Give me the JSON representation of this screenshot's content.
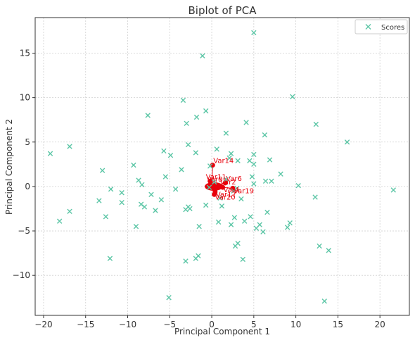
{
  "chart_data": {
    "type": "scatter",
    "title": "Biplot of PCA",
    "xlabel": "Principal Component 1",
    "ylabel": "Principal Component 2",
    "xlim": [
      -21,
      23.5
    ],
    "ylim": [
      -14.5,
      19
    ],
    "xticks": [
      -20,
      -15,
      -10,
      -5,
      0,
      5,
      10,
      15,
      20
    ],
    "yticks": [
      -10,
      -5,
      0,
      5,
      10,
      15
    ],
    "grid": true,
    "legend": {
      "position": "top-right",
      "entries": [
        "Scores"
      ]
    },
    "colors": {
      "scores": "#5cc6a6",
      "vectors": "#e8000b",
      "axes": "#333333",
      "grid": "#d0d0d0"
    },
    "series": [
      {
        "name": "Scores",
        "marker": "x",
        "x": [
          5.0,
          -1.1,
          9.6,
          -3.4,
          -0.7,
          -7.6,
          -1.8,
          4.1,
          12.4,
          -3.0,
          1.7,
          6.3,
          16.1,
          -19.2,
          -16.9,
          -2.8,
          -5.7,
          0.6,
          -4.9,
          -1.9,
          5.0,
          2.3,
          2.1,
          3.1,
          4.5,
          -0.2,
          -9.3,
          6.9,
          5.0,
          -3.6,
          4.8,
          -13.0,
          8.2,
          -5.5,
          6.4,
          7.1,
          5.0,
          3.0,
          -8.7,
          0.3,
          1.7,
          10.3,
          21.6,
          2.6,
          -12.0,
          -0.3,
          -10.7,
          -8.3,
          -7.2,
          -4.3,
          1.0,
          3.5,
          12.3,
          -13.4,
          -6.0,
          -10.7,
          -2.8,
          -8.4,
          1.2,
          -0.7,
          -8.0,
          -16.9,
          -2.6,
          -3.1,
          4.6,
          6.6,
          -6.7,
          2.7,
          -12.6,
          0.8,
          9.3,
          3.9,
          5.7,
          2.3,
          -9.0,
          9.0,
          5.3,
          6.1,
          -1.5,
          12.8,
          3.1,
          2.8,
          13.9,
          -12.1,
          3.7,
          -1.6,
          -1.9,
          -3.1,
          -5.1,
          13.4,
          -18.1
        ],
        "y": [
          17.3,
          14.7,
          10.1,
          9.7,
          8.5,
          8.0,
          7.8,
          7.2,
          7.0,
          7.1,
          6.0,
          5.8,
          5.0,
          3.7,
          4.5,
          4.7,
          4.0,
          4.2,
          3.5,
          3.8,
          3.6,
          3.7,
          3.2,
          2.9,
          2.9,
          2.3,
          2.4,
          3.0,
          2.5,
          1.9,
          1.1,
          1.8,
          1.4,
          1.1,
          0.6,
          0.6,
          0.3,
          -0.2,
          0.7,
          0.5,
          0.8,
          0.1,
          -0.4,
          -0.5,
          -0.3,
          -0.1,
          -0.7,
          0.2,
          -0.9,
          -0.3,
          -1.3,
          -1.4,
          -1.2,
          -1.6,
          -1.5,
          -1.8,
          -2.3,
          -2.0,
          -2.2,
          -2.1,
          -2.3,
          -2.8,
          -2.5,
          -2.6,
          -3.4,
          -2.9,
          -2.7,
          -3.5,
          -3.4,
          -4.0,
          -4.1,
          -3.9,
          -4.3,
          -4.3,
          -4.5,
          -4.6,
          -4.7,
          -5.1,
          -4.5,
          -6.7,
          -6.4,
          -6.7,
          -7.2,
          -8.1,
          -8.2,
          -7.8,
          -8.1,
          -8.4,
          -12.5,
          -12.9,
          -3.9
        ]
      }
    ],
    "vectors": {
      "names": [
        "Var14",
        "Var11",
        "Var8",
        "Var2",
        "Var6",
        "Var4",
        "Var17",
        "Var19",
        "Var20"
      ],
      "x": [
        0.1,
        -0.2,
        -0.1,
        0.9,
        1.6,
        1.3,
        0.4,
        2.5,
        0.3
      ],
      "y": [
        2.4,
        0.6,
        0.3,
        0.0,
        0.4,
        -0.1,
        -0.6,
        -0.2,
        -0.9
      ]
    }
  }
}
